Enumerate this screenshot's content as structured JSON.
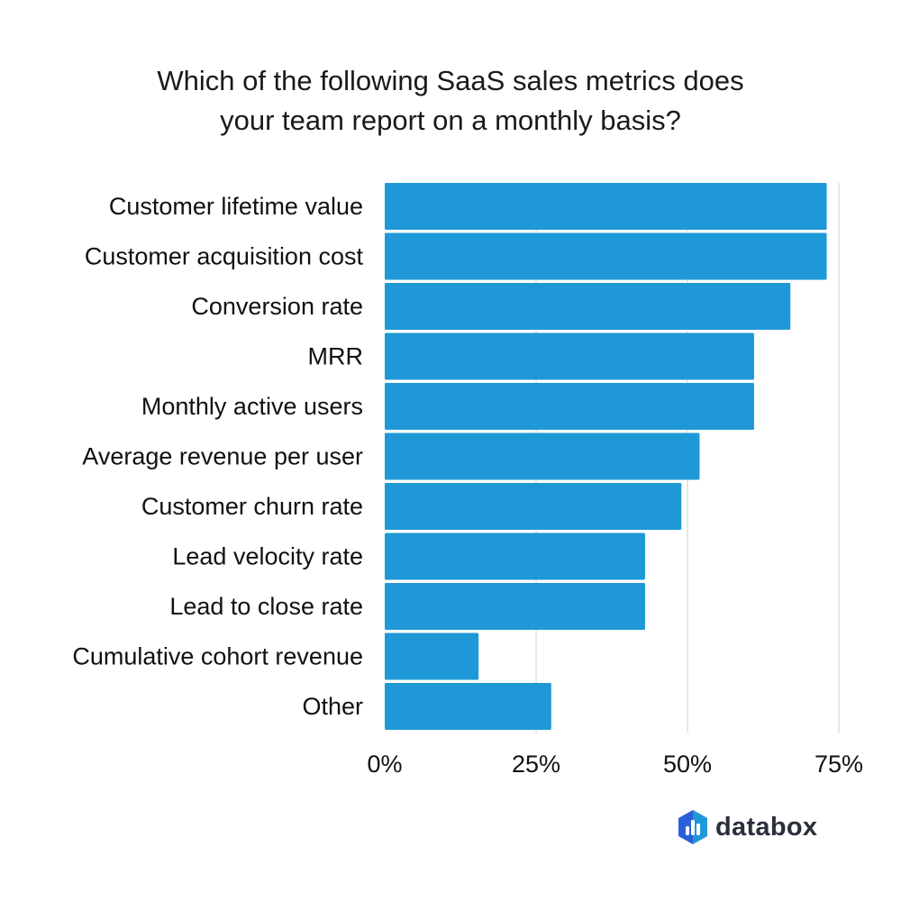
{
  "chart_data": {
    "type": "bar",
    "orientation": "horizontal",
    "title_lines": [
      "Which of the following SaaS sales metrics does",
      "your team report on a monthly basis?"
    ],
    "categories": [
      "Customer lifetime value",
      "Customer acquisition cost",
      "Conversion rate",
      "MRR",
      "Monthly active users",
      "Average revenue per user",
      "Customer churn rate",
      "Lead velocity rate",
      "Lead to close rate",
      "Cumulative cohort revenue",
      "Other"
    ],
    "values": [
      73,
      73,
      67,
      61,
      61,
      52,
      49,
      43,
      43,
      15.5,
      27.5
    ],
    "xlim": [
      0,
      75
    ],
    "xticks": [
      0,
      25,
      50,
      75
    ],
    "xtick_labels": [
      "0%",
      "25%",
      "50%",
      "75%"
    ],
    "xlabel": "",
    "ylabel": "",
    "grid": "vertical",
    "bar_color": "#1e98d6",
    "grid_color": "#d9d9d9"
  },
  "brand": {
    "name": "databox",
    "logo_colors": [
      "#1e98d6",
      "#2b5fd9",
      "#2b2f3a"
    ]
  }
}
